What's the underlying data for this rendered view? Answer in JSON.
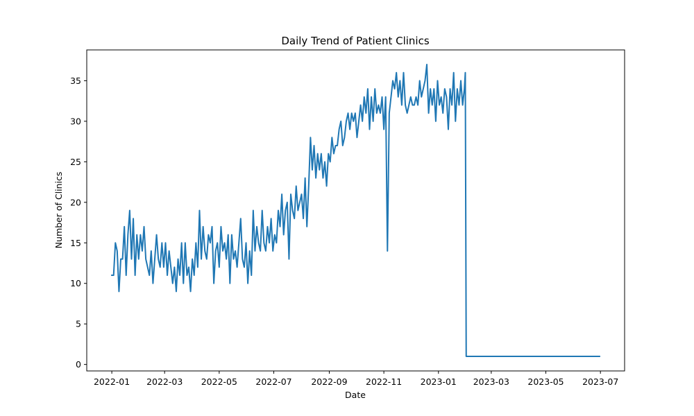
{
  "chart_data": {
    "type": "line",
    "title": "Daily Trend of Patient Clinics",
    "xlabel": "Date",
    "ylabel": "Number of Clinics",
    "x_ticks": [
      "2022-01",
      "2022-03",
      "2022-05",
      "2022-07",
      "2022-09",
      "2022-11",
      "2023-01",
      "2023-03",
      "2023-05",
      "2023-07"
    ],
    "y_ticks": [
      0,
      5,
      10,
      15,
      20,
      25,
      30,
      35
    ],
    "xlim": [
      "2021-12-04",
      "2023-07-28"
    ],
    "ylim": [
      -0.8,
      38.8
    ],
    "grid": false,
    "legend": "none",
    "series": [
      {
        "color": "#1f77b4",
        "points": [
          [
            "2022-01-01",
            11
          ],
          [
            "2022-01-03",
            11
          ],
          [
            "2022-01-05",
            15
          ],
          [
            "2022-01-07",
            14
          ],
          [
            "2022-01-09",
            9
          ],
          [
            "2022-01-11",
            13
          ],
          [
            "2022-01-13",
            13
          ],
          [
            "2022-01-15",
            17
          ],
          [
            "2022-01-17",
            11
          ],
          [
            "2022-01-19",
            16
          ],
          [
            "2022-01-21",
            19
          ],
          [
            "2022-01-23",
            13
          ],
          [
            "2022-01-25",
            18
          ],
          [
            "2022-01-27",
            11
          ],
          [
            "2022-01-29",
            16
          ],
          [
            "2022-01-31",
            13
          ],
          [
            "2022-02-02",
            16
          ],
          [
            "2022-02-04",
            14
          ],
          [
            "2022-02-06",
            17
          ],
          [
            "2022-02-08",
            13
          ],
          [
            "2022-02-10",
            12
          ],
          [
            "2022-02-12",
            11
          ],
          [
            "2022-02-14",
            14
          ],
          [
            "2022-02-16",
            10
          ],
          [
            "2022-02-18",
            13
          ],
          [
            "2022-02-20",
            16
          ],
          [
            "2022-02-22",
            13
          ],
          [
            "2022-02-24",
            12
          ],
          [
            "2022-02-26",
            15
          ],
          [
            "2022-02-28",
            12
          ],
          [
            "2022-03-02",
            15
          ],
          [
            "2022-03-04",
            11
          ],
          [
            "2022-03-06",
            14
          ],
          [
            "2022-03-08",
            12
          ],
          [
            "2022-03-10",
            10
          ],
          [
            "2022-03-12",
            12
          ],
          [
            "2022-03-14",
            9
          ],
          [
            "2022-03-16",
            13
          ],
          [
            "2022-03-18",
            11
          ],
          [
            "2022-03-20",
            15
          ],
          [
            "2022-03-22",
            10
          ],
          [
            "2022-03-24",
            15
          ],
          [
            "2022-03-26",
            11
          ],
          [
            "2022-03-28",
            12
          ],
          [
            "2022-03-30",
            9
          ],
          [
            "2022-04-01",
            13
          ],
          [
            "2022-04-03",
            11
          ],
          [
            "2022-04-05",
            15
          ],
          [
            "2022-04-07",
            12
          ],
          [
            "2022-04-09",
            19
          ],
          [
            "2022-04-11",
            13
          ],
          [
            "2022-04-13",
            17
          ],
          [
            "2022-04-15",
            14
          ],
          [
            "2022-04-17",
            13
          ],
          [
            "2022-04-19",
            16
          ],
          [
            "2022-04-21",
            15
          ],
          [
            "2022-04-23",
            17
          ],
          [
            "2022-04-25",
            10
          ],
          [
            "2022-04-27",
            14
          ],
          [
            "2022-04-29",
            15
          ],
          [
            "2022-05-01",
            12
          ],
          [
            "2022-05-03",
            17
          ],
          [
            "2022-05-05",
            14
          ],
          [
            "2022-05-07",
            15
          ],
          [
            "2022-05-09",
            13
          ],
          [
            "2022-05-11",
            16
          ],
          [
            "2022-05-13",
            10
          ],
          [
            "2022-05-15",
            16
          ],
          [
            "2022-05-17",
            13
          ],
          [
            "2022-05-19",
            14
          ],
          [
            "2022-05-21",
            12
          ],
          [
            "2022-05-23",
            15
          ],
          [
            "2022-05-25",
            18
          ],
          [
            "2022-05-27",
            13
          ],
          [
            "2022-05-29",
            12
          ],
          [
            "2022-05-31",
            15
          ],
          [
            "2022-06-02",
            10
          ],
          [
            "2022-06-04",
            14
          ],
          [
            "2022-06-06",
            11
          ],
          [
            "2022-06-08",
            19
          ],
          [
            "2022-06-10",
            14
          ],
          [
            "2022-06-12",
            17
          ],
          [
            "2022-06-14",
            15
          ],
          [
            "2022-06-16",
            14
          ],
          [
            "2022-06-18",
            19
          ],
          [
            "2022-06-20",
            15
          ],
          [
            "2022-06-22",
            14
          ],
          [
            "2022-06-24",
            17
          ],
          [
            "2022-06-26",
            15
          ],
          [
            "2022-06-28",
            18
          ],
          [
            "2022-06-30",
            14
          ],
          [
            "2022-07-02",
            16
          ],
          [
            "2022-07-04",
            15
          ],
          [
            "2022-07-06",
            19
          ],
          [
            "2022-07-08",
            17
          ],
          [
            "2022-07-10",
            21
          ],
          [
            "2022-07-12",
            16
          ],
          [
            "2022-07-14",
            19
          ],
          [
            "2022-07-16",
            20
          ],
          [
            "2022-07-18",
            13
          ],
          [
            "2022-07-20",
            21
          ],
          [
            "2022-07-22",
            19
          ],
          [
            "2022-07-24",
            18
          ],
          [
            "2022-07-26",
            22
          ],
          [
            "2022-07-28",
            19
          ],
          [
            "2022-07-30",
            20
          ],
          [
            "2022-08-01",
            21
          ],
          [
            "2022-08-03",
            18
          ],
          [
            "2022-08-05",
            23
          ],
          [
            "2022-08-07",
            17
          ],
          [
            "2022-08-09",
            22
          ],
          [
            "2022-08-11",
            28
          ],
          [
            "2022-08-13",
            24
          ],
          [
            "2022-08-15",
            27
          ],
          [
            "2022-08-17",
            23
          ],
          [
            "2022-08-19",
            26
          ],
          [
            "2022-08-21",
            24
          ],
          [
            "2022-08-23",
            26
          ],
          [
            "2022-08-25",
            23
          ],
          [
            "2022-08-27",
            25
          ],
          [
            "2022-08-29",
            22
          ],
          [
            "2022-08-31",
            26
          ],
          [
            "2022-09-02",
            25
          ],
          [
            "2022-09-04",
            28
          ],
          [
            "2022-09-06",
            26
          ],
          [
            "2022-09-08",
            27
          ],
          [
            "2022-09-10",
            27
          ],
          [
            "2022-09-12",
            29
          ],
          [
            "2022-09-14",
            30
          ],
          [
            "2022-09-16",
            27
          ],
          [
            "2022-09-18",
            28
          ],
          [
            "2022-09-20",
            30
          ],
          [
            "2022-09-22",
            31
          ],
          [
            "2022-09-24",
            29
          ],
          [
            "2022-09-26",
            31
          ],
          [
            "2022-09-28",
            30
          ],
          [
            "2022-09-30",
            31
          ],
          [
            "2022-10-02",
            28
          ],
          [
            "2022-10-04",
            30
          ],
          [
            "2022-10-06",
            32
          ],
          [
            "2022-10-08",
            30
          ],
          [
            "2022-10-10",
            33
          ],
          [
            "2022-10-12",
            31
          ],
          [
            "2022-10-14",
            34
          ],
          [
            "2022-10-16",
            29
          ],
          [
            "2022-10-18",
            33
          ],
          [
            "2022-10-20",
            30
          ],
          [
            "2022-10-22",
            34
          ],
          [
            "2022-10-24",
            31
          ],
          [
            "2022-10-26",
            32
          ],
          [
            "2022-10-28",
            31
          ],
          [
            "2022-10-30",
            33
          ],
          [
            "2022-11-01",
            29
          ],
          [
            "2022-11-03",
            33
          ],
          [
            "2022-11-05",
            14
          ],
          [
            "2022-11-07",
            31
          ],
          [
            "2022-11-09",
            33
          ],
          [
            "2022-11-11",
            35
          ],
          [
            "2022-11-13",
            34
          ],
          [
            "2022-11-15",
            36
          ],
          [
            "2022-11-17",
            33
          ],
          [
            "2022-11-19",
            35
          ],
          [
            "2022-11-21",
            32
          ],
          [
            "2022-11-23",
            36
          ],
          [
            "2022-11-25",
            32
          ],
          [
            "2022-11-27",
            31
          ],
          [
            "2022-11-29",
            32
          ],
          [
            "2022-12-01",
            33
          ],
          [
            "2022-12-03",
            32
          ],
          [
            "2022-12-05",
            32
          ],
          [
            "2022-12-07",
            33
          ],
          [
            "2022-12-09",
            32
          ],
          [
            "2022-12-11",
            35
          ],
          [
            "2022-12-13",
            33
          ],
          [
            "2022-12-15",
            34
          ],
          [
            "2022-12-17",
            35
          ],
          [
            "2022-12-19",
            37
          ],
          [
            "2022-12-21",
            31
          ],
          [
            "2022-12-23",
            34
          ],
          [
            "2022-12-25",
            32
          ],
          [
            "2022-12-27",
            34
          ],
          [
            "2022-12-29",
            30
          ],
          [
            "2022-12-31",
            35
          ],
          [
            "2023-01-02",
            32
          ],
          [
            "2023-01-04",
            33
          ],
          [
            "2023-01-06",
            31
          ],
          [
            "2023-01-08",
            34
          ],
          [
            "2023-01-10",
            33
          ],
          [
            "2023-01-12",
            29
          ],
          [
            "2023-01-14",
            34
          ],
          [
            "2023-01-16",
            32
          ],
          [
            "2023-01-18",
            36
          ],
          [
            "2023-01-20",
            30
          ],
          [
            "2023-01-22",
            34
          ],
          [
            "2023-01-24",
            32
          ],
          [
            "2023-01-26",
            35
          ],
          [
            "2023-01-28",
            32
          ],
          [
            "2023-01-30",
            34
          ],
          [
            "2023-01-31",
            36
          ],
          [
            "2023-02-01",
            1
          ],
          [
            "2023-06-30",
            1
          ]
        ]
      }
    ]
  }
}
